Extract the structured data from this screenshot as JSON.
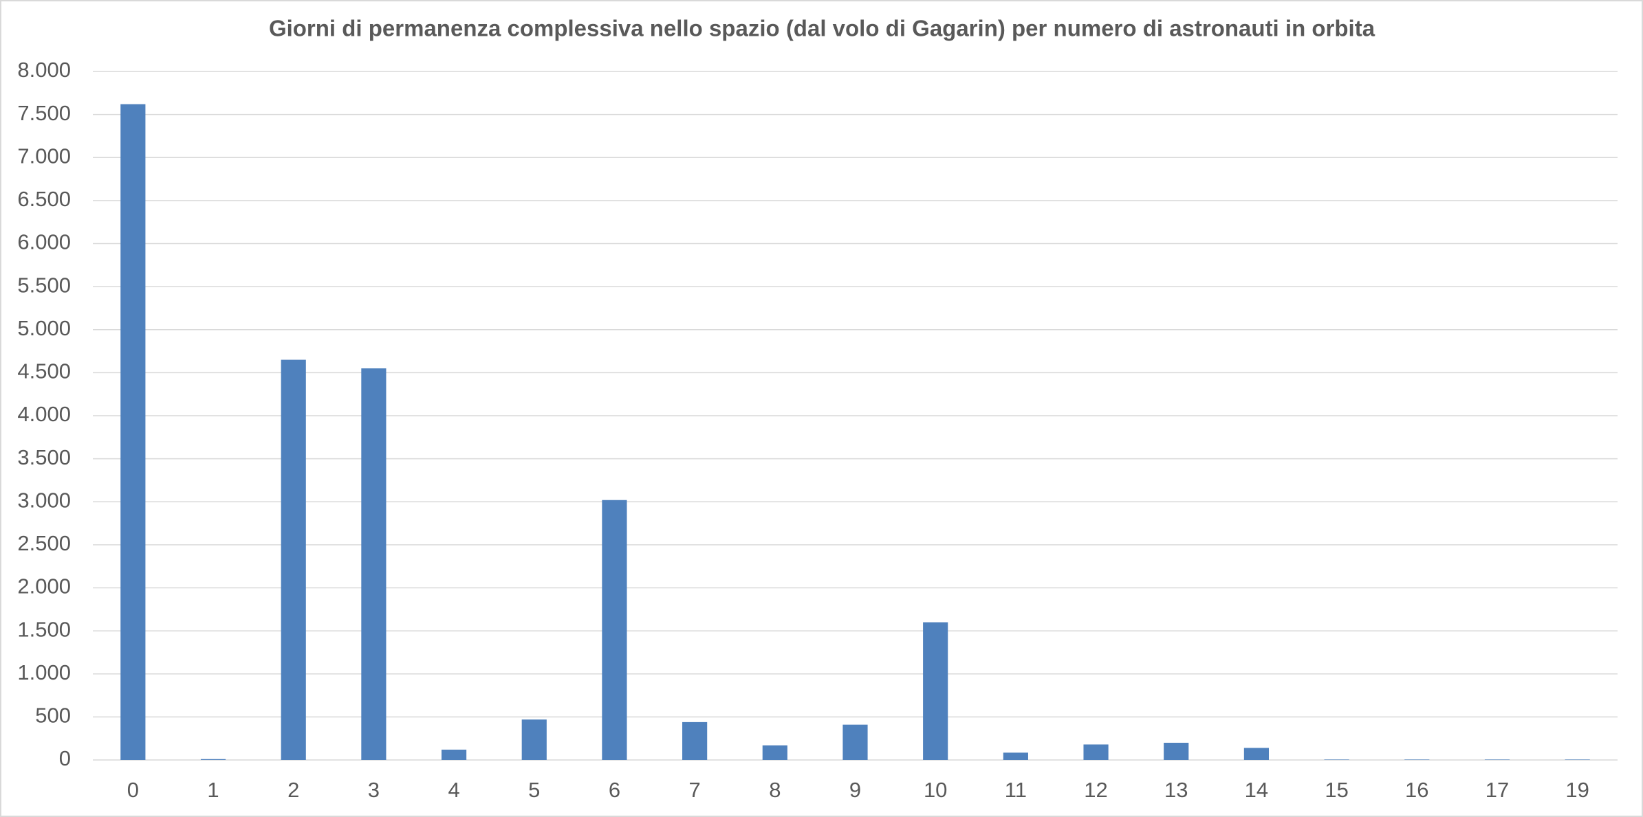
{
  "chart_data": {
    "type": "bar",
    "title": "Giorni di permanenza complessiva nello spazio (dal volo di Gagarin) per numero di astronauti in orbita",
    "categories": [
      "0",
      "1",
      "2",
      "3",
      "4",
      "5",
      "6",
      "7",
      "8",
      "9",
      "10",
      "11",
      "12",
      "13",
      "14",
      "15",
      "16",
      "17",
      "19"
    ],
    "values": [
      7620,
      10,
      4650,
      4550,
      120,
      470,
      3020,
      440,
      170,
      410,
      1600,
      85,
      180,
      200,
      140,
      5,
      5,
      5,
      5
    ],
    "color": "#4f81bd",
    "ylim": [
      0,
      8000
    ],
    "yticks": [
      0,
      500,
      {
        "value": 1000,
        "label": "1.000"
      },
      {
        "value": 1500,
        "label": "1.500"
      },
      {
        "value": 2000,
        "label": "2.000"
      },
      {
        "value": 2500,
        "label": "2.500"
      },
      {
        "value": 3000,
        "label": "3.000"
      },
      {
        "value": 3500,
        "label": "3.500"
      },
      {
        "value": 4000,
        "label": "4.000"
      },
      {
        "value": 4500,
        "label": "4.500"
      },
      {
        "value": 5000,
        "label": "5.000"
      },
      {
        "value": 5500,
        "label": "5.500"
      },
      {
        "value": 6000,
        "label": "6.000"
      },
      {
        "value": 6500,
        "label": "6.500"
      },
      {
        "value": 7000,
        "label": "7.000"
      },
      {
        "value": 7500,
        "label": "7.500"
      },
      {
        "value": 8000,
        "label": "8.000"
      }
    ],
    "grid": true
  }
}
